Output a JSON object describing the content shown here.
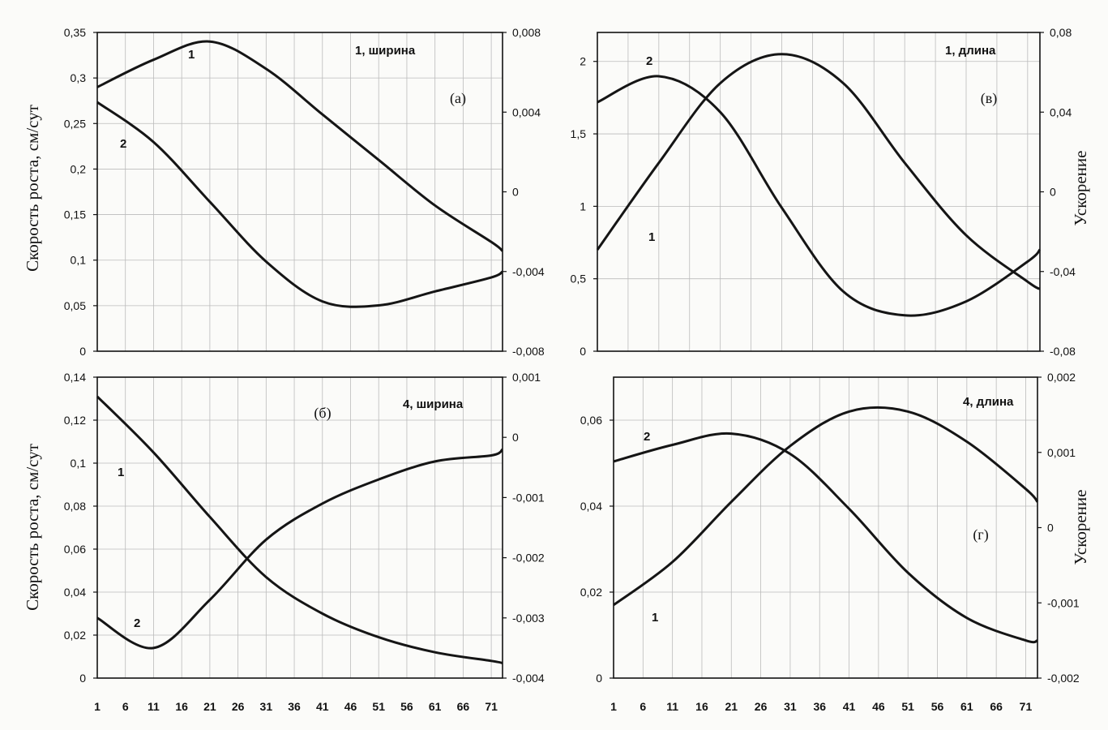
{
  "left_ylabel": "Скорость роста, см/сут",
  "right_ylabel": "Ускорение",
  "chart_data": [
    {
      "id": "a",
      "type": "line",
      "title": "1, ширина",
      "panel_label": "(а)",
      "x_ticks": [],
      "ylim_left": [
        0,
        0.35
      ],
      "yticks_left": [
        "0",
        "0,05",
        "0,1",
        "0,15",
        "0,2",
        "0,25",
        "0,3",
        "0,35"
      ],
      "ylim_right": [
        -0.008,
        0.008
      ],
      "yticks_right": [
        "-0,008",
        "-0,004",
        "0",
        "0,004",
        "0,008"
      ],
      "series": [
        {
          "name": "1",
          "axis": "left",
          "x": [
            1,
            11,
            21,
            31,
            41,
            51,
            61,
            71,
            73
          ],
          "values": [
            0.29,
            0.32,
            0.34,
            0.31,
            0.26,
            0.21,
            0.16,
            0.12,
            0.11
          ]
        },
        {
          "name": "2",
          "axis": "right",
          "x": [
            1,
            11,
            21,
            31,
            41,
            51,
            61,
            71,
            73
          ],
          "values": [
            0.0045,
            0.0025,
            -0.0005,
            -0.0035,
            -0.0055,
            -0.0057,
            -0.005,
            -0.0043,
            -0.004
          ]
        }
      ]
    },
    {
      "id": "v",
      "type": "line",
      "title": "1, длина",
      "panel_label": "(в)",
      "x_ticks": [],
      "ylim_left": [
        0,
        2.2
      ],
      "yticks_left": [
        "0",
        "0,5",
        "1",
        "1,5",
        "2"
      ],
      "ylim_right": [
        -0.08,
        0.08
      ],
      "yticks_right": [
        "-0,08",
        "-0,04",
        "0",
        "0,04",
        "0,08"
      ],
      "series": [
        {
          "name": "1",
          "axis": "left",
          "x": [
            1,
            11,
            21,
            31,
            41,
            51,
            61,
            71,
            73
          ],
          "values": [
            0.7,
            1.3,
            1.85,
            2.05,
            1.85,
            1.3,
            0.8,
            0.48,
            0.43
          ]
        },
        {
          "name": "2",
          "axis": "right",
          "x": [
            1,
            11,
            21,
            31,
            41,
            51,
            61,
            71,
            73
          ],
          "values": [
            0.045,
            0.058,
            0.04,
            -0.008,
            -0.05,
            -0.062,
            -0.055,
            -0.035,
            -0.029
          ]
        }
      ]
    },
    {
      "id": "b",
      "type": "line",
      "title": "4, ширина",
      "panel_label": "(б)",
      "x_ticks": [
        "1",
        "6",
        "11",
        "16",
        "21",
        "26",
        "31",
        "36",
        "41",
        "46",
        "51",
        "56",
        "61",
        "66",
        "71"
      ],
      "ylim_left": [
        0,
        0.14
      ],
      "yticks_left": [
        "0",
        "0,02",
        "0,04",
        "0,06",
        "0,08",
        "0,1",
        "0,12",
        "0,14"
      ],
      "ylim_right": [
        -0.004,
        0.001
      ],
      "yticks_right": [
        "-0,004",
        "-0,003",
        "-0,002",
        "-0,001",
        "0",
        "0,001"
      ],
      "series": [
        {
          "name": "1",
          "axis": "left",
          "x": [
            1,
            11,
            21,
            31,
            41,
            51,
            61,
            71,
            73
          ],
          "values": [
            0.131,
            0.105,
            0.075,
            0.047,
            0.03,
            0.019,
            0.012,
            0.008,
            0.007
          ]
        },
        {
          "name": "2",
          "axis": "right",
          "x": [
            1,
            11,
            21,
            31,
            41,
            51,
            61,
            71,
            73
          ],
          "values": [
            -0.003,
            -0.0035,
            -0.0027,
            -0.0017,
            -0.0011,
            -0.0007,
            -0.0004,
            -0.0003,
            -0.0002
          ]
        }
      ]
    },
    {
      "id": "g",
      "type": "line",
      "title": "4, длина",
      "panel_label": "(г)",
      "x_ticks": [
        "1",
        "6",
        "11",
        "16",
        "21",
        "26",
        "31",
        "36",
        "41",
        "46",
        "51",
        "56",
        "61",
        "66",
        "71"
      ],
      "ylim_left": [
        0,
        0.07
      ],
      "yticks_left": [
        "0",
        "0,02",
        "0,04",
        "0,06"
      ],
      "ylim_right": [
        -0.002,
        0.002
      ],
      "yticks_right": [
        "-0,002",
        "-0,001",
        "0",
        "0,001",
        "0,002"
      ],
      "series": [
        {
          "name": "1",
          "axis": "left",
          "x": [
            1,
            11,
            21,
            31,
            41,
            51,
            61,
            71,
            73
          ],
          "values": [
            0.017,
            0.027,
            0.041,
            0.054,
            0.062,
            0.062,
            0.055,
            0.044,
            0.041
          ]
        },
        {
          "name": "2",
          "axis": "right",
          "x": [
            1,
            11,
            21,
            31,
            41,
            51,
            61,
            71,
            73
          ],
          "values": [
            0.00088,
            0.0011,
            0.00125,
            0.00098,
            0.00025,
            -0.0006,
            -0.0012,
            -0.0015,
            -0.0015
          ]
        }
      ]
    }
  ]
}
